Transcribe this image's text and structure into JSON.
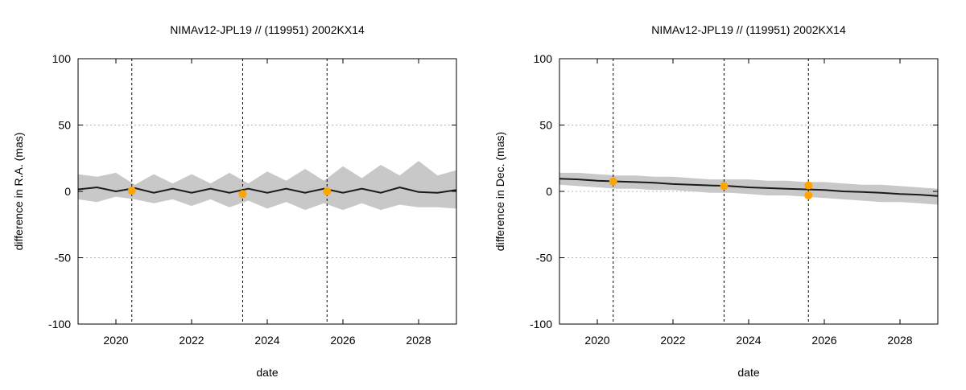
{
  "chart_data": [
    {
      "type": "line",
      "title": "NIMAv12-JPL19 // (119951) 2002KX14",
      "xlabel": "date",
      "ylabel": "difference in R.A. (mas)",
      "xlim": [
        2019.0,
        2029.0
      ],
      "ylim": [
        -100,
        100
      ],
      "x_ticks": [
        2020,
        2022,
        2024,
        2026,
        2028
      ],
      "y_ticks": [
        -100,
        -50,
        0,
        50,
        100
      ],
      "grid": true,
      "colors": {
        "line": "#1a1a1a",
        "band": "#c8c8c8",
        "points": "#ffa500",
        "grid": "#b4b4b4"
      },
      "vlines": [
        2020.42,
        2023.35,
        2025.58
      ],
      "series": [
        {
          "kind": "line",
          "x": [
            2019.0,
            2019.5,
            2020.0,
            2020.5,
            2021.0,
            2021.5,
            2022.0,
            2022.5,
            2023.0,
            2023.5,
            2024.0,
            2024.5,
            2025.0,
            2025.5,
            2026.0,
            2026.5,
            2027.0,
            2027.5,
            2028.0,
            2028.5,
            2029.0
          ],
          "y": [
            1.5,
            3.0,
            0.0,
            2.5,
            -1.0,
            2.0,
            -1.0,
            2.0,
            -1.0,
            2.0,
            -1.0,
            2.0,
            -1.0,
            2.0,
            -1.0,
            2.0,
            -1.0,
            3.0,
            -0.5,
            -1.0,
            1.0
          ]
        },
        {
          "kind": "band",
          "x": [
            2019.0,
            2019.5,
            2020.0,
            2020.5,
            2021.0,
            2021.5,
            2022.0,
            2022.5,
            2023.0,
            2023.5,
            2024.0,
            2024.5,
            2025.0,
            2025.5,
            2026.0,
            2026.5,
            2027.0,
            2027.5,
            2028.0,
            2028.5,
            2029.0
          ],
          "upper": [
            13,
            11,
            14,
            5,
            13,
            6,
            13,
            6,
            14,
            6,
            15,
            8,
            17,
            8,
            19,
            10,
            20,
            12,
            23,
            12,
            16
          ],
          "lower": [
            -6,
            -8,
            -4,
            -6,
            -9,
            -6,
            -11,
            -6,
            -12,
            -7,
            -13,
            -8,
            -14,
            -9,
            -14,
            -9,
            -14,
            -10,
            -12,
            -12,
            -13
          ]
        },
        {
          "kind": "points",
          "x": [
            2020.42,
            2023.35,
            2025.58
          ],
          "y": [
            0.5,
            -2.0,
            0.0
          ]
        }
      ]
    },
    {
      "type": "line",
      "title": "NIMAv12-JPL19 // (119951) 2002KX14",
      "xlabel": "date",
      "ylabel": "difference in Dec. (mas)",
      "xlim": [
        2019.0,
        2029.0
      ],
      "ylim": [
        -100,
        100
      ],
      "x_ticks": [
        2020,
        2022,
        2024,
        2026,
        2028
      ],
      "y_ticks": [
        -100,
        -50,
        0,
        50,
        100
      ],
      "grid": true,
      "colors": {
        "line": "#1a1a1a",
        "band": "#c8c8c8",
        "points": "#ffa500",
        "grid": "#b4b4b4"
      },
      "vlines": [
        2020.42,
        2023.35,
        2025.58
      ],
      "series": [
        {
          "kind": "line",
          "x": [
            2019.0,
            2019.5,
            2020.0,
            2020.5,
            2021.0,
            2021.5,
            2022.0,
            2022.5,
            2023.0,
            2023.5,
            2024.0,
            2024.5,
            2025.0,
            2025.5,
            2026.0,
            2026.5,
            2027.0,
            2027.5,
            2028.0,
            2028.5,
            2029.0
          ],
          "y": [
            9.5,
            9.0,
            8.0,
            7.5,
            7.0,
            6.5,
            5.5,
            5.0,
            4.5,
            4.0,
            3.0,
            2.5,
            2.0,
            1.5,
            1.0,
            0.0,
            -0.5,
            -1.0,
            -2.0,
            -2.5,
            -3.5
          ]
        },
        {
          "kind": "band",
          "x": [
            2019.0,
            2019.5,
            2020.0,
            2020.5,
            2021.0,
            2021.5,
            2022.0,
            2022.5,
            2023.0,
            2023.5,
            2024.0,
            2024.5,
            2025.0,
            2025.5,
            2026.0,
            2026.5,
            2027.0,
            2027.5,
            2028.0,
            2028.5,
            2029.0
          ],
          "upper": [
            14,
            14,
            13,
            12,
            12,
            11,
            11,
            10,
            9,
            9,
            9,
            8,
            8,
            7,
            7,
            6,
            5,
            5,
            4,
            3,
            2
          ],
          "lower": [
            5,
            4,
            3,
            2,
            2,
            1,
            1,
            0,
            -1,
            -1,
            -2,
            -3,
            -3,
            -4,
            -5,
            -6,
            -7,
            -8,
            -8,
            -9,
            -10
          ]
        },
        {
          "kind": "points",
          "x": [
            2020.42,
            2023.35,
            2025.58,
            2025.58
          ],
          "y": [
            7.5,
            4.0,
            4.5,
            -3.0
          ]
        }
      ]
    }
  ]
}
